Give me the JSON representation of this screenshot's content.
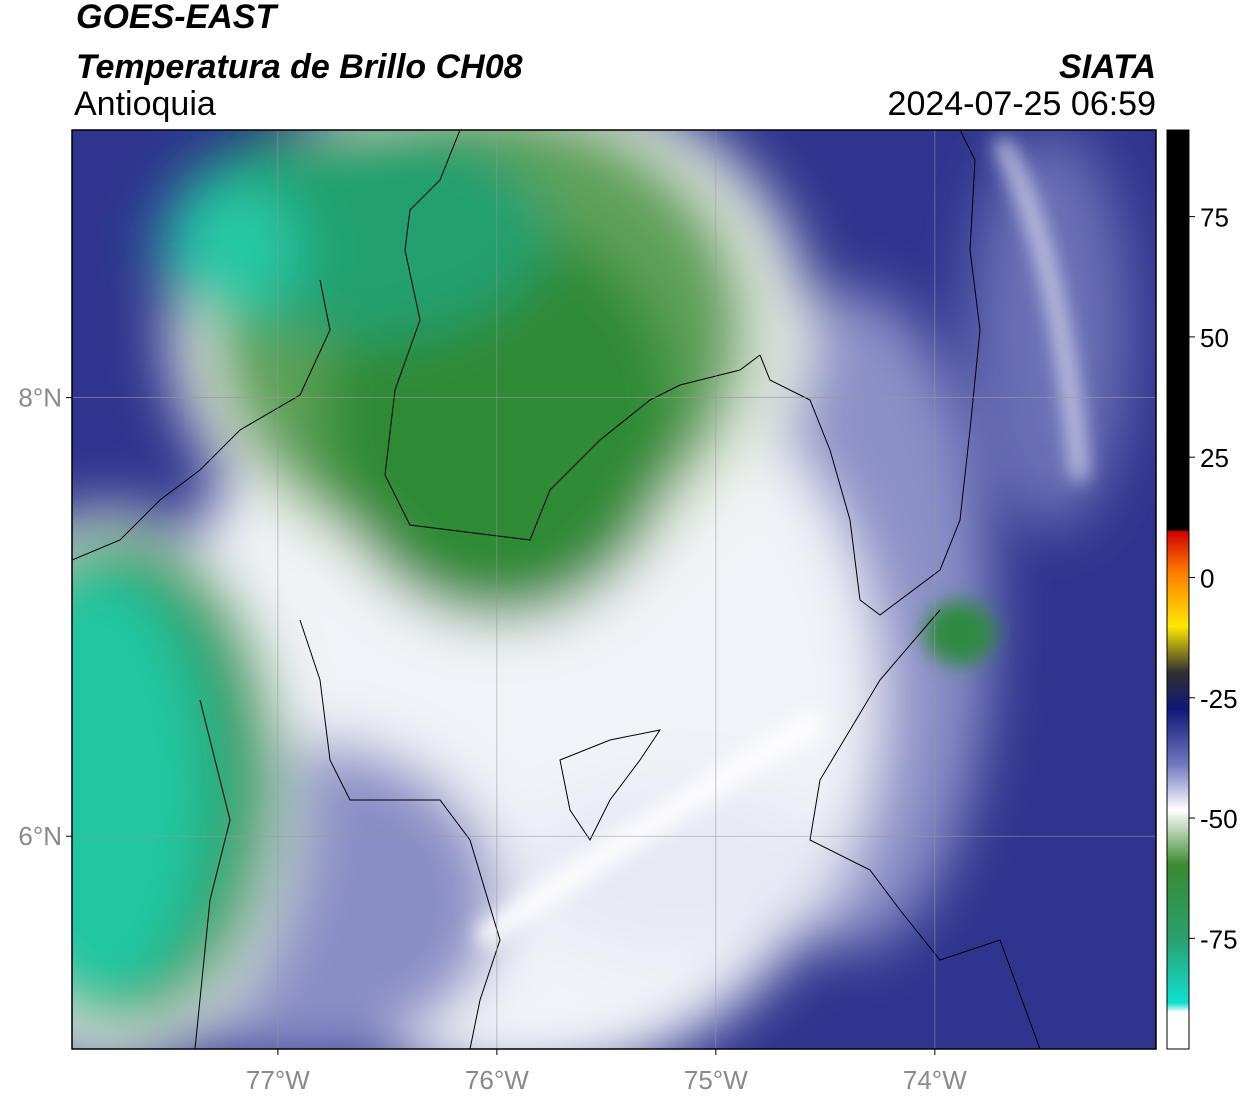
{
  "header": {
    "title": "GOES-EAST",
    "subtitle": "Temperatura de Brillo CH08",
    "region": "Antioquia",
    "source": "SIATA",
    "timestamp": "2024-07-25 06:59"
  },
  "map": {
    "lonlim": [
      -77.94,
      -72.99
    ],
    "latlim": [
      5.03,
      9.22
    ],
    "lon_ticks": [
      {
        "value": -77,
        "label": "77°W"
      },
      {
        "value": -76,
        "label": "76°W"
      },
      {
        "value": -75,
        "label": "75°W"
      },
      {
        "value": -74,
        "label": "74°W"
      }
    ],
    "lat_ticks": [
      {
        "value": 8,
        "label": "8°N"
      },
      {
        "value": 6,
        "label": "6°N"
      }
    ]
  },
  "colorbar": {
    "lim": [
      -98,
      93
    ],
    "ticks": [
      75,
      50,
      25,
      0,
      -25,
      -50,
      -75
    ]
  }
}
